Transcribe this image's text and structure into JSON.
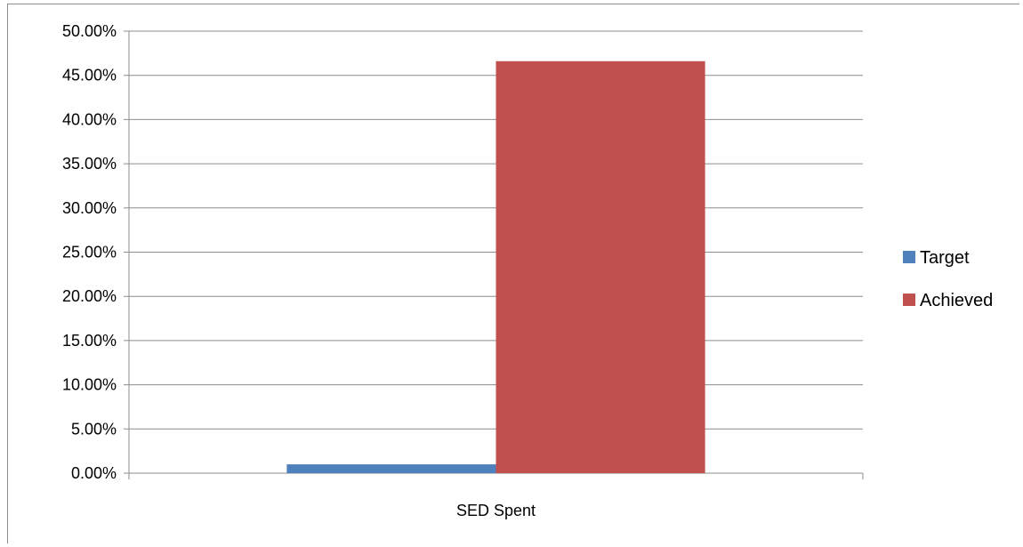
{
  "chart_data": {
    "type": "bar",
    "categories": [
      "SED Spent"
    ],
    "series": [
      {
        "name": "Target",
        "values": [
          1.0
        ],
        "color": "#4F81BD"
      },
      {
        "name": "Achieved",
        "values": [
          46.6
        ],
        "color": "#C0504D"
      }
    ],
    "y_ticks": [
      "0.00%",
      "5.00%",
      "10.00%",
      "15.00%",
      "20.00%",
      "25.00%",
      "30.00%",
      "35.00%",
      "40.00%",
      "45.00%",
      "50.00%"
    ],
    "ylim": [
      0,
      50
    ],
    "y_unit": "percent",
    "grid": true,
    "legend_position": "right"
  }
}
